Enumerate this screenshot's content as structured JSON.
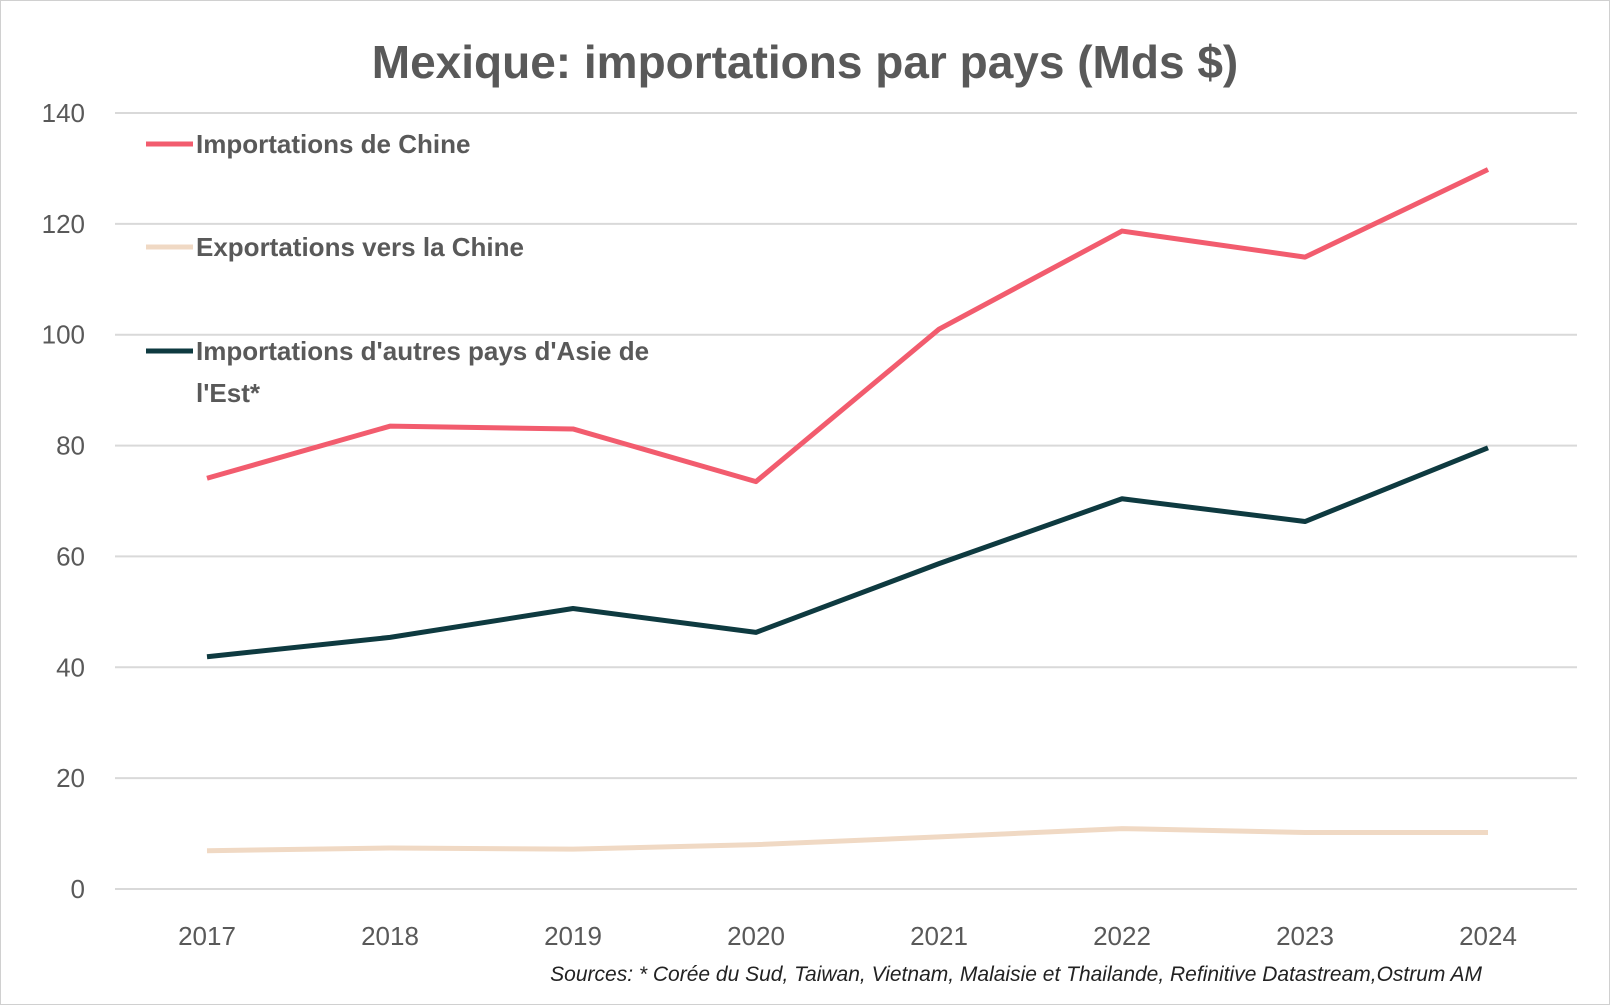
{
  "chart_data": {
    "type": "line",
    "title": "Mexique: importations par pays (Mds $)",
    "categories": [
      "2017",
      "2018",
      "2019",
      "2020",
      "2021",
      "2022",
      "2023",
      "2024"
    ],
    "ylim": [
      0,
      140
    ],
    "yticks": [
      "0",
      "20",
      "40",
      "60",
      "80",
      "100",
      "120",
      "140"
    ],
    "grid": true,
    "legend_position": "top-left",
    "series": [
      {
        "name": "Importations  de Chine",
        "color": "#f25c6e",
        "values": [
          74.1,
          83.5,
          83.0,
          73.5,
          101.0,
          118.7,
          114.0,
          129.8
        ]
      },
      {
        "name": "Exportations vers la Chine",
        "color": "#f0d9c4",
        "values": [
          6.9,
          7.4,
          7.2,
          8.0,
          9.4,
          10.9,
          10.2,
          10.2
        ]
      },
      {
        "name": "Importations d'autres pays d'Asie de l'Est*",
        "name_lines": [
          "Importations d'autres pays d'Asie de",
          "l'Est*"
        ],
        "color": "#0e3a40",
        "values": [
          41.9,
          45.4,
          50.6,
          46.3,
          58.7,
          70.4,
          66.3,
          79.6
        ]
      }
    ],
    "source": "Sources: * Corée du Sud, Taiwan, Vietnam, Malaisie et Thailande, Refinitive Datastream,Ostrum AM"
  }
}
